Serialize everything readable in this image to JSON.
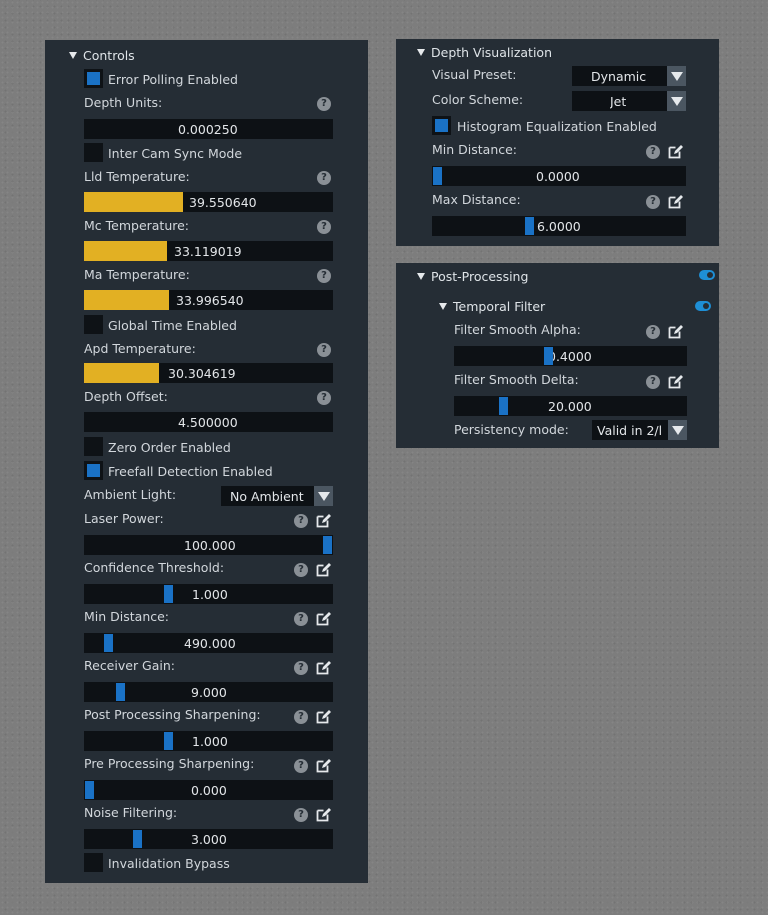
{
  "controls": {
    "title": "Controls",
    "error_polling": {
      "label": "Error Polling Enabled",
      "checked": true
    },
    "depth_units": {
      "label": "Depth Units:",
      "value": "0.000250"
    },
    "inter_cam_sync": {
      "label": "Inter Cam Sync Mode",
      "checked": false
    },
    "lld_temp": {
      "label": "Lld Temperature:",
      "value": "39.550640"
    },
    "mc_temp": {
      "label": "Mc Temperature:",
      "value": "33.119019"
    },
    "ma_temp": {
      "label": "Ma Temperature:",
      "value": "33.996540"
    },
    "global_time": {
      "label": "Global Time Enabled",
      "checked": false
    },
    "apd_temp": {
      "label": "Apd Temperature:",
      "value": "30.304619"
    },
    "depth_offset": {
      "label": "Depth Offset:",
      "value": "4.500000"
    },
    "zero_order": {
      "label": "Zero Order Enabled",
      "checked": false
    },
    "freefall": {
      "label": "Freefall Detection Enabled",
      "checked": true
    },
    "ambient_light": {
      "label": "Ambient Light:",
      "value": "No Ambient"
    },
    "laser_power": {
      "label": "Laser Power:",
      "value": "100.000",
      "level": 1.0
    },
    "confidence": {
      "label": "Confidence Threshold:",
      "value": "1.000",
      "level": 0.33
    },
    "min_distance": {
      "label": "Min Distance:",
      "value": "490.000",
      "level": 0.08
    },
    "receiver_gain": {
      "label": "Receiver Gain:",
      "value": "9.000",
      "level": 0.13
    },
    "post_sharpening": {
      "label": "Post Processing Sharpening:",
      "value": "1.000",
      "level": 0.33
    },
    "pre_sharpening": {
      "label": "Pre Processing Sharpening:",
      "value": "0.000",
      "level": 0.0
    },
    "noise_filtering": {
      "label": "Noise Filtering:",
      "value": "3.000",
      "level": 0.2
    },
    "invalidation_bypass": {
      "label": "Invalidation Bypass",
      "checked": false
    }
  },
  "depth_vis": {
    "title": "Depth Visualization",
    "visual_preset": {
      "label": "Visual Preset:",
      "value": "Dynamic"
    },
    "color_scheme": {
      "label": "Color Scheme:",
      "value": "Jet"
    },
    "histogram_eq": {
      "label": "Histogram Equalization Enabled",
      "checked": true
    },
    "min_distance": {
      "label": "Min Distance:",
      "value": "0.0000",
      "level": 0.0
    },
    "max_distance": {
      "label": "Max Distance:",
      "value": "6.0000",
      "level": 0.38
    }
  },
  "post_processing": {
    "title": "Post-Processing",
    "enabled": true,
    "temporal_filter": {
      "title": "Temporal Filter",
      "enabled": true,
      "smooth_alpha": {
        "label": "Filter Smooth Alpha:",
        "value": "0.4000",
        "level": 0.4
      },
      "smooth_delta": {
        "label": "Filter Smooth Delta:",
        "value": "20.000",
        "level": 0.2
      },
      "persistency": {
        "label": "Persistency mode:",
        "value": "Valid in 2/l"
      }
    }
  },
  "icons": {
    "help": "?",
    "help_icon": "question-circle-icon",
    "edit_icon": "pencil-square-icon",
    "collapse_icon": "triangle-down-icon"
  },
  "colors": {
    "accent": "#1a72c6",
    "temperature_bar": "#e2b023",
    "panel": "#252d35",
    "field": "#0d1115"
  }
}
